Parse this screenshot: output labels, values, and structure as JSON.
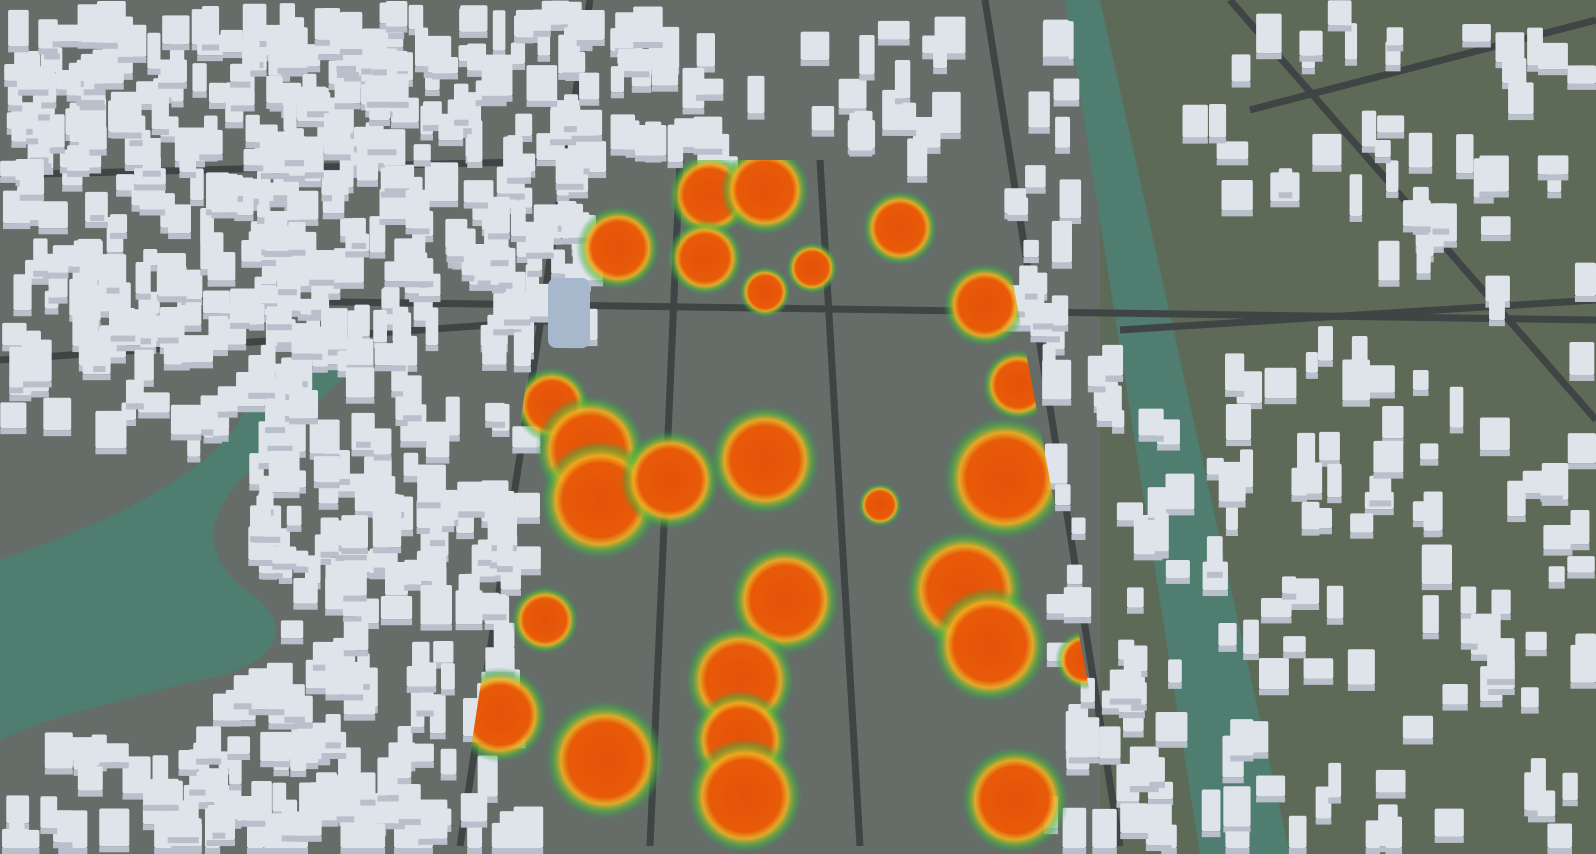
{
  "map": {
    "view": "3d-city-heatmap",
    "colors": {
      "ground": "#5f6b63",
      "urban_ground": "#6a706c",
      "water": "#4f7d6f",
      "building": "#dfe3ea",
      "building_shade": "#b9c0cc",
      "road": "#3f4444",
      "heat_high": "#e4520a",
      "heat_mid": "#f0c020",
      "heat_low": "#3cb43c"
    },
    "layers": [
      "buildings",
      "roads",
      "water",
      "heatmap"
    ]
  }
}
